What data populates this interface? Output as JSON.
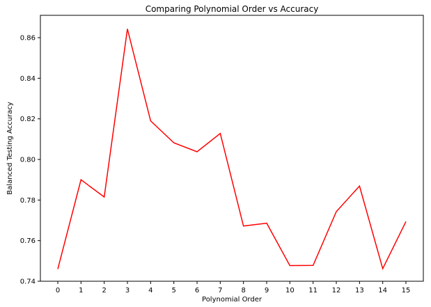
{
  "chart_data": {
    "type": "line",
    "title": "Comparing Polynomial Order vs Accuracy",
    "xlabel": "Polynomial Order",
    "ylabel": "Balanced Testing Accuracy",
    "x": [
      0,
      1,
      2,
      3,
      4,
      5,
      6,
      7,
      8,
      9,
      10,
      11,
      12,
      13,
      14,
      15
    ],
    "series": [
      {
        "color": "#ff0000",
        "values": [
          0.746,
          0.79,
          0.7815,
          0.8643,
          0.819,
          0.8082,
          0.8038,
          0.8128,
          0.7672,
          0.7686,
          0.7477,
          0.7478,
          0.7743,
          0.7869,
          0.7462,
          0.7694
        ]
      }
    ],
    "xlim": [
      -0.75,
      15.75
    ],
    "ylim": [
      0.74,
      0.871
    ],
    "xticks": [
      "0",
      "1",
      "2",
      "3",
      "4",
      "5",
      "6",
      "7",
      "8",
      "9",
      "10",
      "11",
      "12",
      "13",
      "14",
      "15"
    ],
    "yticks": [
      "0.74",
      "0.76",
      "0.78",
      "0.80",
      "0.82",
      "0.84",
      "0.86"
    ],
    "ytick_values": [
      0.74,
      0.76,
      0.78,
      0.8,
      0.82,
      0.84,
      0.86
    ],
    "grid": false,
    "legend": "none"
  }
}
